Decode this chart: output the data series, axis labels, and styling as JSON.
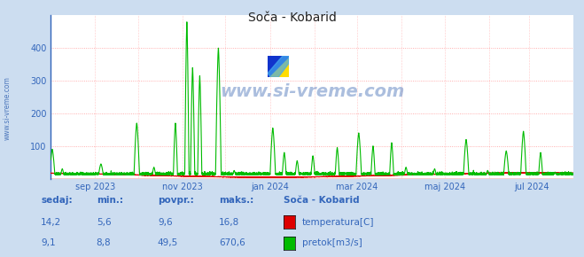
{
  "title": "Soča - Kobarid",
  "bg_color": "#ccddf0",
  "plot_bg_color": "#ffffff",
  "grid_color_h": "#ff9999",
  "grid_color_v": "#ddaaaa",
  "text_color": "#3366bb",
  "ylim": [
    0,
    500
  ],
  "yticks": [
    100,
    200,
    300,
    400
  ],
  "temp_color": "#dd0000",
  "flow_color": "#00bb00",
  "watermark": "www.si-vreme.com",
  "watermark_color": "#2255aa",
  "legend_title": "Soča - Kobarid",
  "legend_temp_label": "temperatura[C]",
  "legend_flow_label": "pretok[m3/s]",
  "stats_headers": [
    "sedaj:",
    "min.:",
    "povpr.:",
    "maks.:"
  ],
  "stats_temp": [
    "14,2",
    "5,6",
    "9,6",
    "16,8"
  ],
  "stats_flow": [
    "9,1",
    "8,8",
    "49,5",
    "670,6"
  ],
  "x_tick_labels": [
    "sep 2023",
    "nov 2023",
    "jan 2024",
    "mar 2024",
    "maj 2024",
    "jul 2024"
  ],
  "left_label": "www.si-vreme.com",
  "left_spine_color": "#3366bb",
  "arrow_color": "#cc0000"
}
